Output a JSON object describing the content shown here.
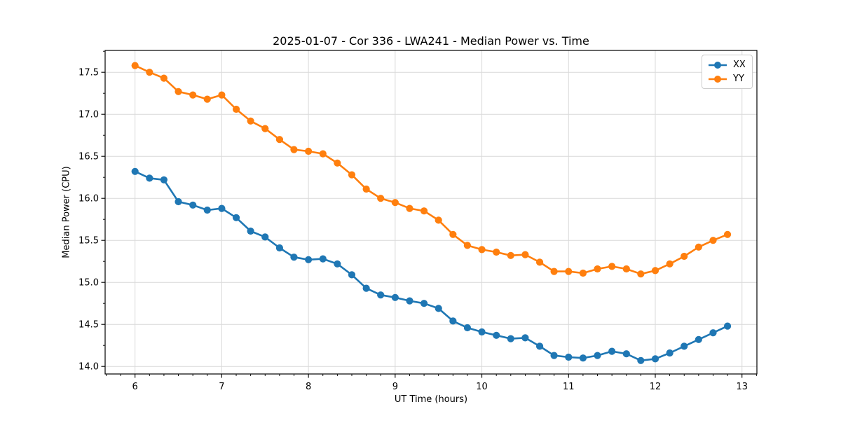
{
  "chart_data": {
    "type": "line",
    "title": "2025-01-07 - Cor 336 - LWA241 - Median Power vs. Time",
    "xlabel": "UT Time (hours)",
    "ylabel": "Median Power (CPU)",
    "xlim": [
      5.655,
      13.172
    ],
    "ylim": [
      13.91,
      17.76
    ],
    "xticks": [
      6,
      7,
      8,
      9,
      10,
      11,
      12,
      13
    ],
    "xtick_labels": [
      "6",
      "7",
      "8",
      "9",
      "10",
      "11",
      "12",
      "13"
    ],
    "yticks": [
      14.0,
      14.5,
      15.0,
      15.5,
      16.0,
      16.5,
      17.0,
      17.5
    ],
    "ytick_labels": [
      "14.0",
      "14.5",
      "15.0",
      "15.5",
      "16.0",
      "16.5",
      "17.0",
      "17.5"
    ],
    "x_minor_step": 0.166667,
    "y_minor_step": 0.25,
    "grid": "major",
    "grid_color": "#d9d9d9",
    "legend_position": "upper right",
    "x": [
      6.0,
      6.167,
      6.333,
      6.5,
      6.667,
      6.833,
      7.0,
      7.167,
      7.333,
      7.5,
      7.667,
      7.833,
      8.0,
      8.167,
      8.333,
      8.5,
      8.667,
      8.833,
      9.0,
      9.167,
      9.333,
      9.5,
      9.667,
      9.833,
      10.0,
      10.167,
      10.333,
      10.5,
      10.667,
      10.833,
      11.0,
      11.167,
      11.333,
      11.5,
      11.667,
      11.833,
      12.0,
      12.167,
      12.333,
      12.5,
      12.667,
      12.833
    ],
    "series": [
      {
        "name": "XX",
        "color": "#1f77b4",
        "values": [
          16.32,
          16.24,
          16.22,
          15.96,
          15.92,
          15.86,
          15.88,
          15.77,
          15.61,
          15.54,
          15.41,
          15.3,
          15.27,
          15.28,
          15.22,
          15.09,
          14.93,
          14.85,
          14.82,
          14.78,
          14.75,
          14.69,
          14.54,
          14.46,
          14.41,
          14.37,
          14.33,
          14.34,
          14.24,
          14.13,
          14.11,
          14.1,
          14.13,
          14.18,
          14.15,
          14.07,
          14.09,
          14.16,
          14.24,
          14.32,
          14.4,
          14.48
        ]
      },
      {
        "name": "YY",
        "color": "#ff7f0e",
        "values": [
          17.58,
          17.5,
          17.43,
          17.27,
          17.23,
          17.18,
          17.23,
          17.06,
          16.92,
          16.83,
          16.7,
          16.58,
          16.56,
          16.53,
          16.42,
          16.28,
          16.11,
          16.0,
          15.95,
          15.88,
          15.85,
          15.74,
          15.57,
          15.44,
          15.39,
          15.36,
          15.32,
          15.33,
          15.24,
          15.13,
          15.13,
          15.11,
          15.16,
          15.19,
          15.16,
          15.1,
          15.14,
          15.22,
          15.31,
          15.42,
          15.5,
          15.57
        ]
      }
    ]
  }
}
